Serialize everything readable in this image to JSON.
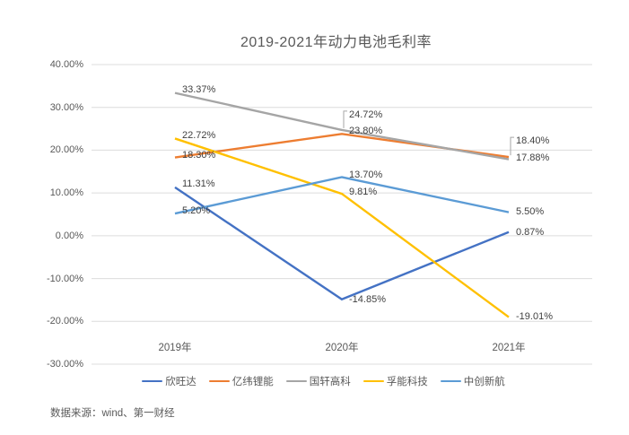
{
  "page": {
    "title": "2019-2021年动力电池毛利率",
    "source_note": "数据来源：wind、第一财经"
  },
  "chart_data": {
    "type": "line",
    "title": "2019-2021年动力电池毛利率",
    "categories": [
      "2019年",
      "2020年",
      "2021年"
    ],
    "series": [
      {
        "name": "欣旺达",
        "color": "#4472C4",
        "values": [
          11.31,
          -14.85,
          0.87
        ],
        "labels": [
          {
            "text": "11.31%",
            "dx": 8,
            "dy": -4
          },
          {
            "text": "-14.85%",
            "dx": 8,
            "dy": 0
          },
          {
            "text": "0.87%",
            "dx": 8,
            "dy": 0
          }
        ]
      },
      {
        "name": "亿纬锂能",
        "color": "#ED7D31",
        "values": [
          18.3,
          23.8,
          18.4
        ],
        "labels": [
          {
            "text": "18.30%",
            "dx": 8,
            "dy": -3
          },
          {
            "text": "23.80%",
            "dx": 8,
            "dy": -3
          },
          {
            "text": "18.40%",
            "dx": 8,
            "dy": -18,
            "leader": true
          }
        ]
      },
      {
        "name": "国轩高科",
        "color": "#A5A5A5",
        "values": [
          33.37,
          24.72,
          17.88
        ],
        "labels": [
          {
            "text": "33.37%",
            "dx": 8,
            "dy": -4
          },
          {
            "text": "24.72%",
            "dx": 8,
            "dy": -17,
            "leader": true
          },
          {
            "text": "17.88%",
            "dx": 8,
            "dy": -2
          }
        ]
      },
      {
        "name": "孚能科技",
        "color": "#FFC000",
        "values": [
          22.72,
          9.81,
          -19.01
        ],
        "labels": [
          {
            "text": "22.72%",
            "dx": 8,
            "dy": -3
          },
          {
            "text": "9.81%",
            "dx": 8,
            "dy": -2
          },
          {
            "text": "-19.01%",
            "dx": 8,
            "dy": -1
          }
        ]
      },
      {
        "name": "中创新航",
        "color": "#5B9BD5",
        "values": [
          5.2,
          13.7,
          5.5
        ],
        "labels": [
          {
            "text": "5.20%",
            "dx": 8,
            "dy": -3
          },
          {
            "text": "13.70%",
            "dx": 8,
            "dy": -2
          },
          {
            "text": "5.50%",
            "dx": 8,
            "dy": -1
          }
        ]
      }
    ],
    "y_axis": {
      "min": -30,
      "max": 40,
      "step": 10,
      "tick_labels": [
        "40.00%",
        "30.00%",
        "20.00%",
        "10.00%",
        "0.00%",
        "-10.00%",
        "-20.00%",
        "-30.00%"
      ]
    },
    "xlabel": "",
    "ylabel": "",
    "grid": true,
    "legend_position": "bottom",
    "colors": {
      "gridline": "#DCDCDC",
      "axis_text": "#595959",
      "data_label_text": "#404040",
      "leader_line": "#A6A6A6",
      "background": "#FFFFFF"
    },
    "source_note": "数据来源：wind、第一财经"
  }
}
